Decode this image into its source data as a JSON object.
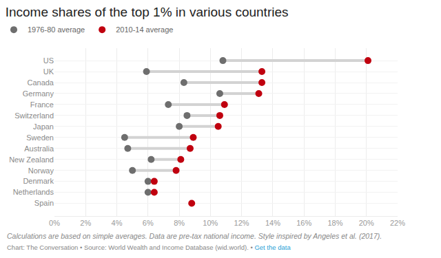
{
  "chart_data": {
    "type": "dumbbell",
    "orientation": "horizontal",
    "title": "Income shares of the top 1% in various countries",
    "categories": [
      "US",
      "UK",
      "Canada",
      "Germany",
      "France",
      "Switzerland",
      "Japan",
      "Sweden",
      "Spain",
      "Australia",
      "New Zealand",
      "Norway",
      "Denmark",
      "Netherlands"
    ],
    "series": [
      {
        "name": "1976-80 average",
        "color": "#6e6e6e",
        "values": [
          10.8,
          5.9,
          8.3,
          10.6,
          7.3,
          8.5,
          8.0,
          4.5,
          null,
          4.7,
          6.2,
          5.0,
          6.0,
          6.0
        ]
      },
      {
        "name": "2010-14 average",
        "color": "#c0000f",
        "values": [
          20.1,
          13.3,
          13.3,
          13.1,
          10.9,
          10.6,
          10.5,
          8.9,
          8.8,
          8.7,
          8.1,
          7.8,
          6.4,
          6.4
        ]
      }
    ],
    "xlim": [
      0,
      22
    ],
    "xticks": [
      {
        "value": 0,
        "label": "0%"
      },
      {
        "value": 2,
        "label": "2%"
      },
      {
        "value": 4,
        "label": "4%"
      },
      {
        "value": 6,
        "label": "6%"
      },
      {
        "value": 8,
        "label": "8%"
      },
      {
        "value": 10,
        "label": "10%"
      },
      {
        "value": 12,
        "label": "12%"
      },
      {
        "value": 14,
        "label": "14%"
      },
      {
        "value": 16,
        "label": "16%"
      },
      {
        "value": 18,
        "label": "18%"
      },
      {
        "value": 20,
        "label": "20%"
      },
      {
        "value": 22,
        "label": "22%"
      }
    ],
    "grid": true,
    "legend": "top-left",
    "footnote": "Calculations are based on simple averages. Data are pre-tax national income. Style inspired by Angeles et al. (2017).",
    "source": "Chart: The Conversation • Source: World Wealth and Income Database (wid.world). •",
    "source_link": "Get the data"
  }
}
